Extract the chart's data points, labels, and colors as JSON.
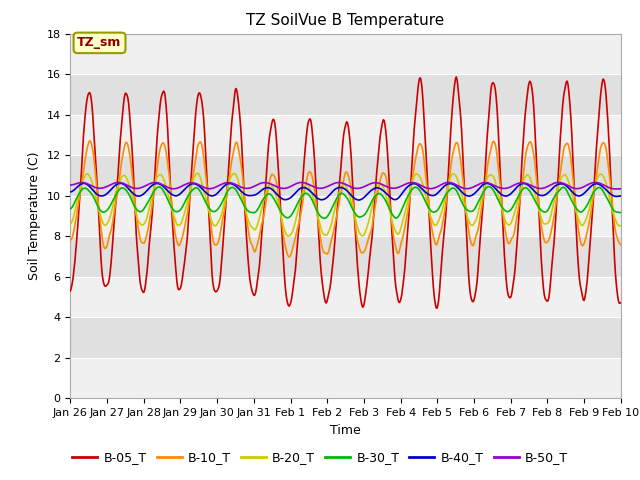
{
  "title": "TZ SoilVue B Temperature",
  "xlabel": "Time",
  "ylabel": "Soil Temperature (C)",
  "ylim": [
    0,
    18
  ],
  "yticks": [
    0,
    2,
    4,
    6,
    8,
    10,
    12,
    14,
    16,
    18
  ],
  "x_labels": [
    "Jan 26",
    "Jan 27",
    "Jan 28",
    "Jan 29",
    "Jan 30",
    "Jan 31",
    "Feb 1",
    "Feb 2",
    "Feb 3",
    "Feb 4",
    "Feb 5",
    "Feb 6",
    "Feb 7",
    "Feb 8",
    "Feb 9",
    "Feb 10"
  ],
  "annotation_text": "TZ_sm",
  "series": {
    "B-05_T": {
      "color": "#cc0000",
      "linewidth": 1.2
    },
    "B-10_T": {
      "color": "#ff8c00",
      "linewidth": 1.2
    },
    "B-20_T": {
      "color": "#cccc00",
      "linewidth": 1.2
    },
    "B-30_T": {
      "color": "#00bb00",
      "linewidth": 1.2
    },
    "B-40_T": {
      "color": "#0000cc",
      "linewidth": 1.2
    },
    "B-50_T": {
      "color": "#9900cc",
      "linewidth": 1.2
    }
  },
  "background_color": "#ffffff",
  "plot_bg_light": "#f0f0f0",
  "plot_bg_dark": "#e0e0e0",
  "grid_color": "#ffffff",
  "n_points": 720
}
